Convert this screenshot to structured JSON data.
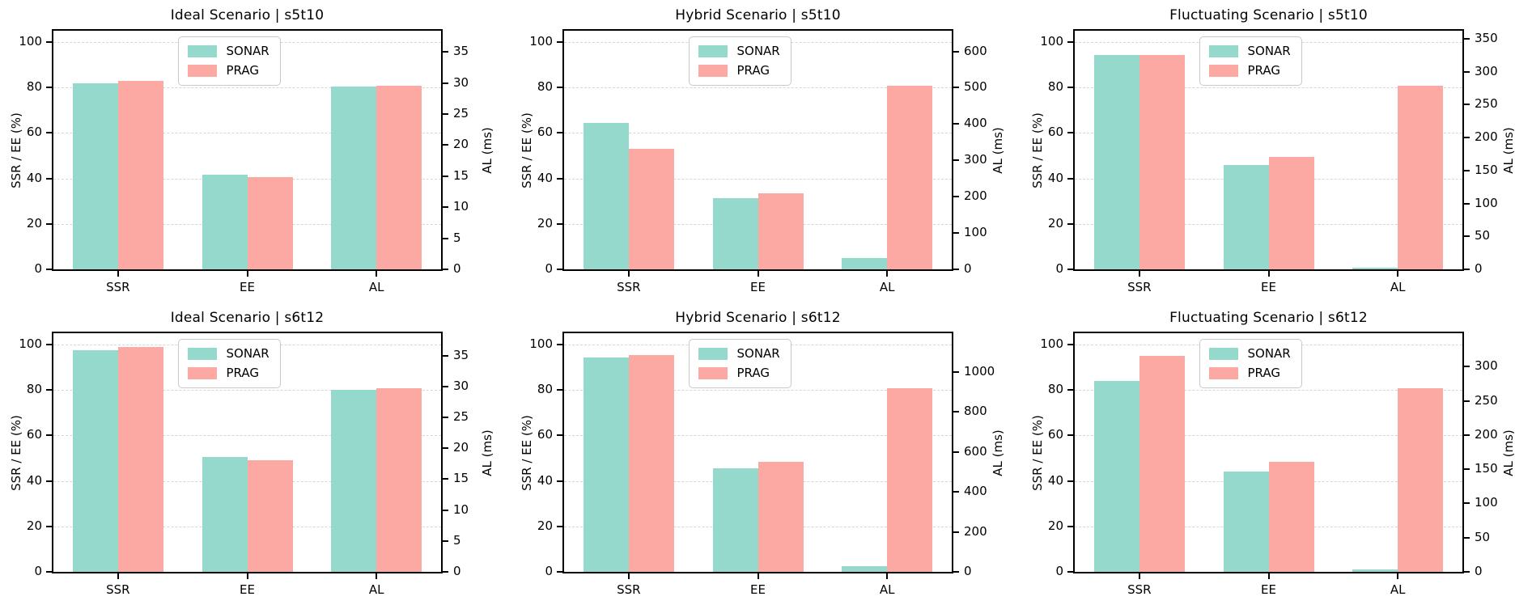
{
  "figure": {
    "background": "#ffffff",
    "rows": 2,
    "cols": 3
  },
  "palette": {
    "sonar": "#95d9cc",
    "prag": "#fba9a2",
    "gridline": "#d6d6d6",
    "spine": "#000000",
    "text": "#000000",
    "legend_border": "#c9c9c9"
  },
  "legend": {
    "position": "upper-center-inside",
    "items": [
      "SONAR",
      "PRAG"
    ]
  },
  "layout_hints": {
    "grid": "horizontal-dashed",
    "bars_per_group": 2,
    "al_category_uses_right_axis": true
  },
  "chart_data": [
    {
      "type": "bar",
      "title": "Ideal Scenario | s5t10",
      "categories": [
        "SSR",
        "EE",
        "AL"
      ],
      "left_axis": {
        "label": "SSR / EE (%)",
        "ticks": [
          0,
          20,
          40,
          60,
          80,
          100
        ],
        "max": 105
      },
      "right_axis": {
        "label": "AL (ms)",
        "ticks": [
          0,
          5,
          10,
          15,
          20,
          25,
          30,
          35
        ],
        "max": 38.4
      },
      "series": [
        {
          "name": "SONAR",
          "values": [
            82,
            41.5,
            29.4
          ]
        },
        {
          "name": "PRAG",
          "values": [
            83,
            40.5,
            29.6
          ]
        }
      ]
    },
    {
      "type": "bar",
      "title": "Hybrid Scenario | s5t10",
      "categories": [
        "SSR",
        "EE",
        "AL"
      ],
      "left_axis": {
        "label": "SSR / EE (%)",
        "ticks": [
          0,
          20,
          40,
          60,
          80,
          100
        ],
        "max": 105
      },
      "right_axis": {
        "label": "AL (ms)",
        "ticks": [
          0,
          100,
          200,
          300,
          400,
          500,
          600
        ],
        "max": 657
      },
      "series": [
        {
          "name": "SONAR",
          "values": [
            64.3,
            31.2,
            32
          ]
        },
        {
          "name": "PRAG",
          "values": [
            53,
            33.5,
            505
          ]
        }
      ]
    },
    {
      "type": "bar",
      "title": "Fluctuating Scenario | s5t10",
      "categories": [
        "SSR",
        "EE",
        "AL"
      ],
      "left_axis": {
        "label": "SSR / EE (%)",
        "ticks": [
          0,
          20,
          40,
          60,
          80,
          100
        ],
        "max": 105
      },
      "right_axis": {
        "label": "AL (ms)",
        "ticks": [
          0,
          50,
          100,
          150,
          200,
          250,
          300,
          350
        ],
        "max": 362
      },
      "series": [
        {
          "name": "SONAR",
          "values": [
            94.5,
            46,
            2.5
          ]
        },
        {
          "name": "PRAG",
          "values": [
            94.5,
            49.5,
            278
          ]
        }
      ]
    },
    {
      "type": "bar",
      "title": "Ideal Scenario | s6t12",
      "categories": [
        "SSR",
        "EE",
        "AL"
      ],
      "left_axis": {
        "label": "SSR / EE (%)",
        "ticks": [
          0,
          20,
          40,
          60,
          80,
          100
        ],
        "max": 105
      },
      "right_axis": {
        "label": "AL (ms)",
        "ticks": [
          0,
          5,
          10,
          15,
          20,
          25,
          30,
          35
        ],
        "max": 38.6
      },
      "series": [
        {
          "name": "SONAR",
          "values": [
            97.5,
            50.5,
            29.5
          ]
        },
        {
          "name": "PRAG",
          "values": [
            99,
            49,
            29.7
          ]
        }
      ]
    },
    {
      "type": "bar",
      "title": "Hybrid Scenario | s6t12",
      "categories": [
        "SSR",
        "EE",
        "AL"
      ],
      "left_axis": {
        "label": "SSR / EE (%)",
        "ticks": [
          0,
          20,
          40,
          60,
          80,
          100
        ],
        "max": 105
      },
      "right_axis": {
        "label": "AL (ms)",
        "ticks": [
          0,
          200,
          400,
          600,
          800,
          1000
        ],
        "max": 1194
      },
      "series": [
        {
          "name": "SONAR",
          "values": [
            94.5,
            45.5,
            29
          ]
        },
        {
          "name": "PRAG",
          "values": [
            95.5,
            48.5,
            918
          ]
        }
      ]
    },
    {
      "type": "bar",
      "title": "Fluctuating Scenario | s6t12",
      "categories": [
        "SSR",
        "EE",
        "AL"
      ],
      "left_axis": {
        "label": "SSR / EE (%)",
        "ticks": [
          0,
          20,
          40,
          60,
          80,
          100
        ],
        "max": 105
      },
      "right_axis": {
        "label": "AL (ms)",
        "ticks": [
          0,
          50,
          100,
          150,
          200,
          250,
          300
        ],
        "max": 349
      },
      "series": [
        {
          "name": "SONAR",
          "values": [
            84,
            44,
            3
          ]
        },
        {
          "name": "PRAG",
          "values": [
            95,
            48.3,
            268
          ]
        }
      ]
    }
  ]
}
